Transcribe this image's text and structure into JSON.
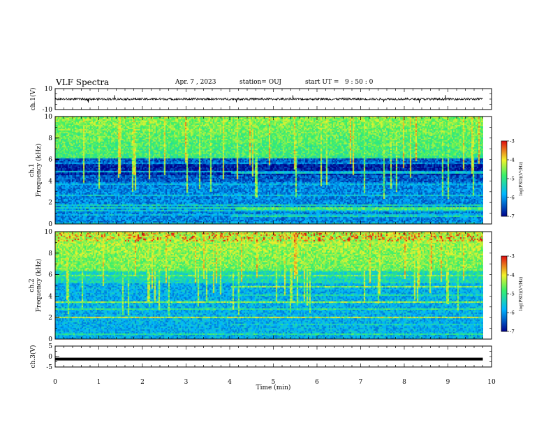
{
  "header": {
    "title": "VLF Spectra",
    "date": "Apr. 7 , 2023",
    "station": "station= OUJ",
    "start": "start UT =   9 : 50 : 0"
  },
  "colors": {
    "spec_low": "#00008a",
    "spec_mid": "#00b6ff",
    "spec_green": "#39f06a",
    "spec_yellow": "#f2f22a",
    "spec_high": "#e01010",
    "trace": "#000000"
  },
  "chart_data": [
    {
      "type": "line",
      "panel": "ch1-waveform",
      "ylabel": "ch.1(V)",
      "ylim": [
        -10,
        10
      ],
      "y_ticks": [
        10,
        -10
      ],
      "x_range_min": [
        0,
        9.8
      ],
      "baseline_v": 0,
      "noise_amplitude_v": 2
    },
    {
      "type": "heatmap",
      "panel": "ch1-spectrogram",
      "ylabel": "ch.1\nFrequency (kHz)",
      "ylim_khz": [
        0,
        10
      ],
      "y_ticks": [
        0,
        2,
        4,
        6,
        8,
        10
      ],
      "x_range_min": [
        0,
        9.8
      ],
      "colorbar": {
        "label": "log(PSD)(V²/Hz)",
        "range": [
          -7,
          -3
        ],
        "ticks": [
          -3,
          -4,
          -5,
          -6,
          -7
        ]
      },
      "features": "background about -6; strong emission above 6 kHz; quiet band 4-6 kHz; narrowband lines near 1-3 kHz; band near 1.3-1.6 kHz after 4.1 min"
    },
    {
      "type": "heatmap",
      "panel": "ch2-spectrogram",
      "ylabel": "ch.2\nFrequency (kHz)",
      "ylim_khz": [
        0,
        10
      ],
      "y_ticks": [
        0,
        2,
        4,
        6,
        8,
        10
      ],
      "x_range_min": [
        0,
        9.8
      ],
      "colorbar": {
        "label": "log(PSD)(V²/Hz)",
        "range": [
          -7,
          -3
        ],
        "ticks": [
          -3,
          -4,
          -5,
          -6,
          -7
        ]
      },
      "features": "strong emission above 6.5 kHz with red lines near 9.5 kHz; many narrowband lines between 3 and 5 kHz"
    },
    {
      "type": "line",
      "panel": "ch3-waveform",
      "ylabel": "ch.3(V)",
      "ylim": [
        -5,
        5
      ],
      "y_ticks": [
        5,
        0,
        -5
      ],
      "x_range_min": [
        0,
        9.8
      ],
      "baseline_v": -1.2
    }
  ],
  "xaxis": {
    "label": "Time (min)",
    "range": [
      0,
      10
    ],
    "ticks": [
      "0",
      "1",
      "2",
      "3",
      "4",
      "5",
      "6",
      "7",
      "8",
      "9",
      "10"
    ]
  }
}
